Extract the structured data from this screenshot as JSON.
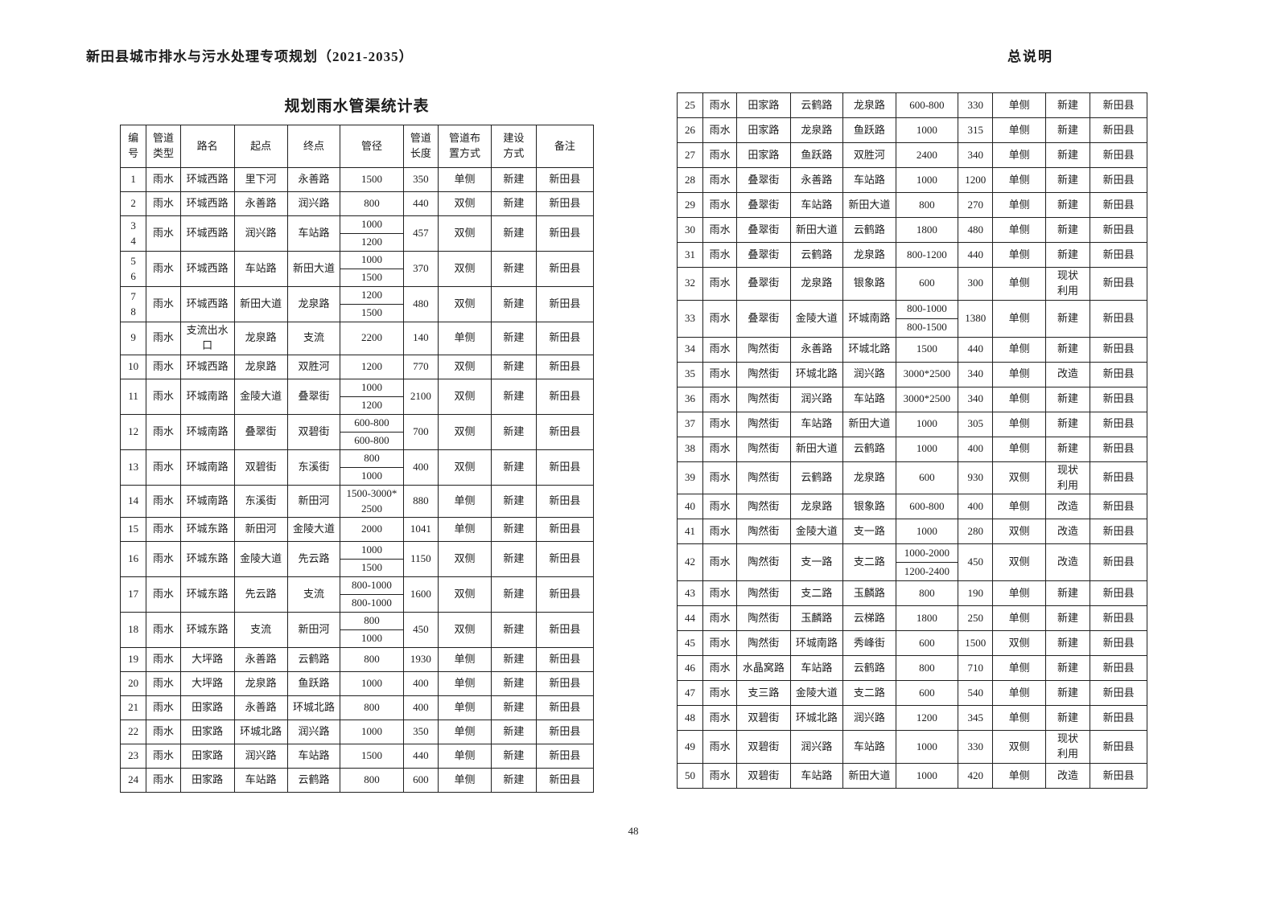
{
  "header": {
    "left_title": "新田县城市排水与污水处理专项规划（2021-2035）",
    "right_title": "总说明"
  },
  "footer": {
    "page_number": "48"
  },
  "table": {
    "title": "规划雨水管渠统计表",
    "columns": [
      "编\n号",
      "管道\n类型",
      "路名",
      "起点",
      "终点",
      "管径",
      "管道\n长度",
      "管道布\n置方式",
      "建设\n方式",
      "备注"
    ],
    "rows_left": [
      {
        "no": "1",
        "type": "雨水",
        "road": "环城西路",
        "start": "里下河",
        "end": "永善路",
        "dia": [
          "1500"
        ],
        "len": "350",
        "side": "单侧",
        "build": "新建",
        "note": "新田县"
      },
      {
        "no": "2",
        "type": "雨水",
        "road": "环城西路",
        "start": "永善路",
        "end": "润兴路",
        "dia": [
          "800"
        ],
        "len": "440",
        "side": "双侧",
        "build": "新建",
        "note": "新田县"
      },
      {
        "no": "3\n4",
        "type": "雨水",
        "road": "环城西路",
        "start": "润兴路",
        "end": "车站路",
        "dia": [
          "1000",
          "1200"
        ],
        "len": "457",
        "side": "双侧",
        "build": "新建",
        "note": "新田县"
      },
      {
        "no": "5\n6",
        "type": "雨水",
        "road": "环城西路",
        "start": "车站路",
        "end": "新田大道",
        "dia": [
          "1000",
          "1500"
        ],
        "len": "370",
        "side": "双侧",
        "build": "新建",
        "note": "新田县"
      },
      {
        "no": "7\n8",
        "type": "雨水",
        "road": "环城西路",
        "start": "新田大道",
        "end": "龙泉路",
        "dia": [
          "1200",
          "1500"
        ],
        "len": "480",
        "side": "双侧",
        "build": "新建",
        "note": "新田县"
      },
      {
        "no": "9",
        "type": "雨水",
        "road": "支流出水\n口",
        "start": "龙泉路",
        "end": "支流",
        "dia": [
          "2200"
        ],
        "len": "140",
        "side": "单侧",
        "build": "新建",
        "note": "新田县"
      },
      {
        "no": "10",
        "type": "雨水",
        "road": "环城西路",
        "start": "龙泉路",
        "end": "双胜河",
        "dia": [
          "1200"
        ],
        "len": "770",
        "side": "双侧",
        "build": "新建",
        "note": "新田县"
      },
      {
        "no": "11",
        "type": "雨水",
        "road": "环城南路",
        "start": "金陵大道",
        "end": "叠翠街",
        "dia": [
          "1000",
          "1200"
        ],
        "len": "2100",
        "side": "双侧",
        "build": "新建",
        "note": "新田县"
      },
      {
        "no": "12",
        "type": "雨水",
        "road": "环城南路",
        "start": "叠翠街",
        "end": "双碧街",
        "dia": [
          "600-800",
          "600-800"
        ],
        "len": "700",
        "side": "双侧",
        "build": "新建",
        "note": "新田县"
      },
      {
        "no": "13",
        "type": "雨水",
        "road": "环城南路",
        "start": "双碧街",
        "end": "东溪街",
        "dia": [
          "800",
          "1000"
        ],
        "len": "400",
        "side": "双侧",
        "build": "新建",
        "note": "新田县"
      },
      {
        "no": "14",
        "type": "雨水",
        "road": "环城南路",
        "start": "东溪街",
        "end": "新田河",
        "dia": [
          "1500-3000*\n2500"
        ],
        "len": "880",
        "side": "单侧",
        "build": "新建",
        "note": "新田县"
      },
      {
        "no": "15",
        "type": "雨水",
        "road": "环城东路",
        "start": "新田河",
        "end": "金陵大道",
        "dia": [
          "2000"
        ],
        "len": "1041",
        "side": "单侧",
        "build": "新建",
        "note": "新田县"
      },
      {
        "no": "16",
        "type": "雨水",
        "road": "环城东路",
        "start": "金陵大道",
        "end": "先云路",
        "dia": [
          "1000",
          "1500"
        ],
        "len": "1150",
        "side": "双侧",
        "build": "新建",
        "note": "新田县"
      },
      {
        "no": "17",
        "type": "雨水",
        "road": "环城东路",
        "start": "先云路",
        "end": "支流",
        "dia": [
          "800-1000",
          "800-1000"
        ],
        "len": "1600",
        "side": "双侧",
        "build": "新建",
        "note": "新田县"
      },
      {
        "no": "18",
        "type": "雨水",
        "road": "环城东路",
        "start": "支流",
        "end": "新田河",
        "dia": [
          "800",
          "1000"
        ],
        "len": "450",
        "side": "双侧",
        "build": "新建",
        "note": "新田县"
      },
      {
        "no": "19",
        "type": "雨水",
        "road": "大坪路",
        "start": "永善路",
        "end": "云鹤路",
        "dia": [
          "800"
        ],
        "len": "1930",
        "side": "单侧",
        "build": "新建",
        "note": "新田县"
      },
      {
        "no": "20",
        "type": "雨水",
        "road": "大坪路",
        "start": "龙泉路",
        "end": "鱼跃路",
        "dia": [
          "1000"
        ],
        "len": "400",
        "side": "单侧",
        "build": "新建",
        "note": "新田县"
      },
      {
        "no": "21",
        "type": "雨水",
        "road": "田家路",
        "start": "永善路",
        "end": "环城北路",
        "dia": [
          "800"
        ],
        "len": "400",
        "side": "单侧",
        "build": "新建",
        "note": "新田县"
      },
      {
        "no": "22",
        "type": "雨水",
        "road": "田家路",
        "start": "环城北路",
        "end": "润兴路",
        "dia": [
          "1000"
        ],
        "len": "350",
        "side": "单侧",
        "build": "新建",
        "note": "新田县"
      },
      {
        "no": "23",
        "type": "雨水",
        "road": "田家路",
        "start": "润兴路",
        "end": "车站路",
        "dia": [
          "1500"
        ],
        "len": "440",
        "side": "单侧",
        "build": "新建",
        "note": "新田县"
      },
      {
        "no": "24",
        "type": "雨水",
        "road": "田家路",
        "start": "车站路",
        "end": "云鹤路",
        "dia": [
          "800"
        ],
        "len": "600",
        "side": "单侧",
        "build": "新建",
        "note": "新田县"
      }
    ],
    "rows_right": [
      {
        "no": "25",
        "type": "雨水",
        "road": "田家路",
        "start": "云鹤路",
        "end": "龙泉路",
        "dia": [
          "600-800"
        ],
        "len": "330",
        "side": "单侧",
        "build": "新建",
        "note": "新田县"
      },
      {
        "no": "26",
        "type": "雨水",
        "road": "田家路",
        "start": "龙泉路",
        "end": "鱼跃路",
        "dia": [
          "1000"
        ],
        "len": "315",
        "side": "单侧",
        "build": "新建",
        "note": "新田县"
      },
      {
        "no": "27",
        "type": "雨水",
        "road": "田家路",
        "start": "鱼跃路",
        "end": "双胜河",
        "dia": [
          "2400"
        ],
        "len": "340",
        "side": "单侧",
        "build": "新建",
        "note": "新田县"
      },
      {
        "no": "28",
        "type": "雨水",
        "road": "叠翠街",
        "start": "永善路",
        "end": "车站路",
        "dia": [
          "1000"
        ],
        "len": "1200",
        "side": "单侧",
        "build": "新建",
        "note": "新田县"
      },
      {
        "no": "29",
        "type": "雨水",
        "road": "叠翠街",
        "start": "车站路",
        "end": "新田大道",
        "dia": [
          "800"
        ],
        "len": "270",
        "side": "单侧",
        "build": "新建",
        "note": "新田县"
      },
      {
        "no": "30",
        "type": "雨水",
        "road": "叠翠街",
        "start": "新田大道",
        "end": "云鹤路",
        "dia": [
          "1800"
        ],
        "len": "480",
        "side": "单侧",
        "build": "新建",
        "note": "新田县"
      },
      {
        "no": "31",
        "type": "雨水",
        "road": "叠翠街",
        "start": "云鹤路",
        "end": "龙泉路",
        "dia": [
          "800-1200"
        ],
        "len": "440",
        "side": "单侧",
        "build": "新建",
        "note": "新田县"
      },
      {
        "no": "32",
        "type": "雨水",
        "road": "叠翠街",
        "start": "龙泉路",
        "end": "银象路",
        "dia": [
          "600"
        ],
        "len": "300",
        "side": "单侧",
        "build": "现状\n利用",
        "note": "新田县"
      },
      {
        "no": "33",
        "type": "雨水",
        "road": "叠翠街",
        "start": "金陵大道",
        "end": "环城南路",
        "dia": [
          "800-1000",
          "800-1500"
        ],
        "len": "1380",
        "side": "单侧",
        "build": "新建",
        "note": "新田县"
      },
      {
        "no": "34",
        "type": "雨水",
        "road": "陶然街",
        "start": "永善路",
        "end": "环城北路",
        "dia": [
          "1500"
        ],
        "len": "440",
        "side": "单侧",
        "build": "新建",
        "note": "新田县"
      },
      {
        "no": "35",
        "type": "雨水",
        "road": "陶然街",
        "start": "环城北路",
        "end": "润兴路",
        "dia": [
          "3000*2500"
        ],
        "len": "340",
        "side": "单侧",
        "build": "改造",
        "note": "新田县"
      },
      {
        "no": "36",
        "type": "雨水",
        "road": "陶然街",
        "start": "润兴路",
        "end": "车站路",
        "dia": [
          "3000*2500"
        ],
        "len": "340",
        "side": "单侧",
        "build": "新建",
        "note": "新田县"
      },
      {
        "no": "37",
        "type": "雨水",
        "road": "陶然街",
        "start": "车站路",
        "end": "新田大道",
        "dia": [
          "1000"
        ],
        "len": "305",
        "side": "单侧",
        "build": "新建",
        "note": "新田县"
      },
      {
        "no": "38",
        "type": "雨水",
        "road": "陶然街",
        "start": "新田大道",
        "end": "云鹤路",
        "dia": [
          "1000"
        ],
        "len": "400",
        "side": "单侧",
        "build": "新建",
        "note": "新田县"
      },
      {
        "no": "39",
        "type": "雨水",
        "road": "陶然街",
        "start": "云鹤路",
        "end": "龙泉路",
        "dia": [
          "600"
        ],
        "len": "930",
        "side": "双侧",
        "build": "现状\n利用",
        "note": "新田县"
      },
      {
        "no": "40",
        "type": "雨水",
        "road": "陶然街",
        "start": "龙泉路",
        "end": "银象路",
        "dia": [
          "600-800"
        ],
        "len": "400",
        "side": "单侧",
        "build": "改造",
        "note": "新田县"
      },
      {
        "no": "41",
        "type": "雨水",
        "road": "陶然街",
        "start": "金陵大道",
        "end": "支一路",
        "dia": [
          "1000"
        ],
        "len": "280",
        "side": "双侧",
        "build": "改造",
        "note": "新田县"
      },
      {
        "no": "42",
        "type": "雨水",
        "road": "陶然街",
        "start": "支一路",
        "end": "支二路",
        "dia": [
          "1000-2000",
          "1200-2400"
        ],
        "len": "450",
        "side": "双侧",
        "build": "改造",
        "note": "新田县"
      },
      {
        "no": "43",
        "type": "雨水",
        "road": "陶然街",
        "start": "支二路",
        "end": "玉麟路",
        "dia": [
          "800"
        ],
        "len": "190",
        "side": "单侧",
        "build": "新建",
        "note": "新田县"
      },
      {
        "no": "44",
        "type": "雨水",
        "road": "陶然街",
        "start": "玉麟路",
        "end": "云梯路",
        "dia": [
          "1800"
        ],
        "len": "250",
        "side": "单侧",
        "build": "新建",
        "note": "新田县"
      },
      {
        "no": "45",
        "type": "雨水",
        "road": "陶然街",
        "start": "环城南路",
        "end": "秀峰街",
        "dia": [
          "600"
        ],
        "len": "1500",
        "side": "双侧",
        "build": "新建",
        "note": "新田县"
      },
      {
        "no": "46",
        "type": "雨水",
        "road": "水晶窝路",
        "start": "车站路",
        "end": "云鹤路",
        "dia": [
          "800"
        ],
        "len": "710",
        "side": "单侧",
        "build": "新建",
        "note": "新田县"
      },
      {
        "no": "47",
        "type": "雨水",
        "road": "支三路",
        "start": "金陵大道",
        "end": "支二路",
        "dia": [
          "600"
        ],
        "len": "540",
        "side": "单侧",
        "build": "新建",
        "note": "新田县"
      },
      {
        "no": "48",
        "type": "雨水",
        "road": "双碧街",
        "start": "环城北路",
        "end": "润兴路",
        "dia": [
          "1200"
        ],
        "len": "345",
        "side": "单侧",
        "build": "新建",
        "note": "新田县"
      },
      {
        "no": "49",
        "type": "雨水",
        "road": "双碧街",
        "start": "润兴路",
        "end": "车站路",
        "dia": [
          "1000"
        ],
        "len": "330",
        "side": "双侧",
        "build": "现状\n利用",
        "note": "新田县"
      },
      {
        "no": "50",
        "type": "雨水",
        "road": "双碧街",
        "start": "车站路",
        "end": "新田大道",
        "dia": [
          "1000"
        ],
        "len": "420",
        "side": "单侧",
        "build": "改造",
        "note": "新田县"
      }
    ]
  }
}
